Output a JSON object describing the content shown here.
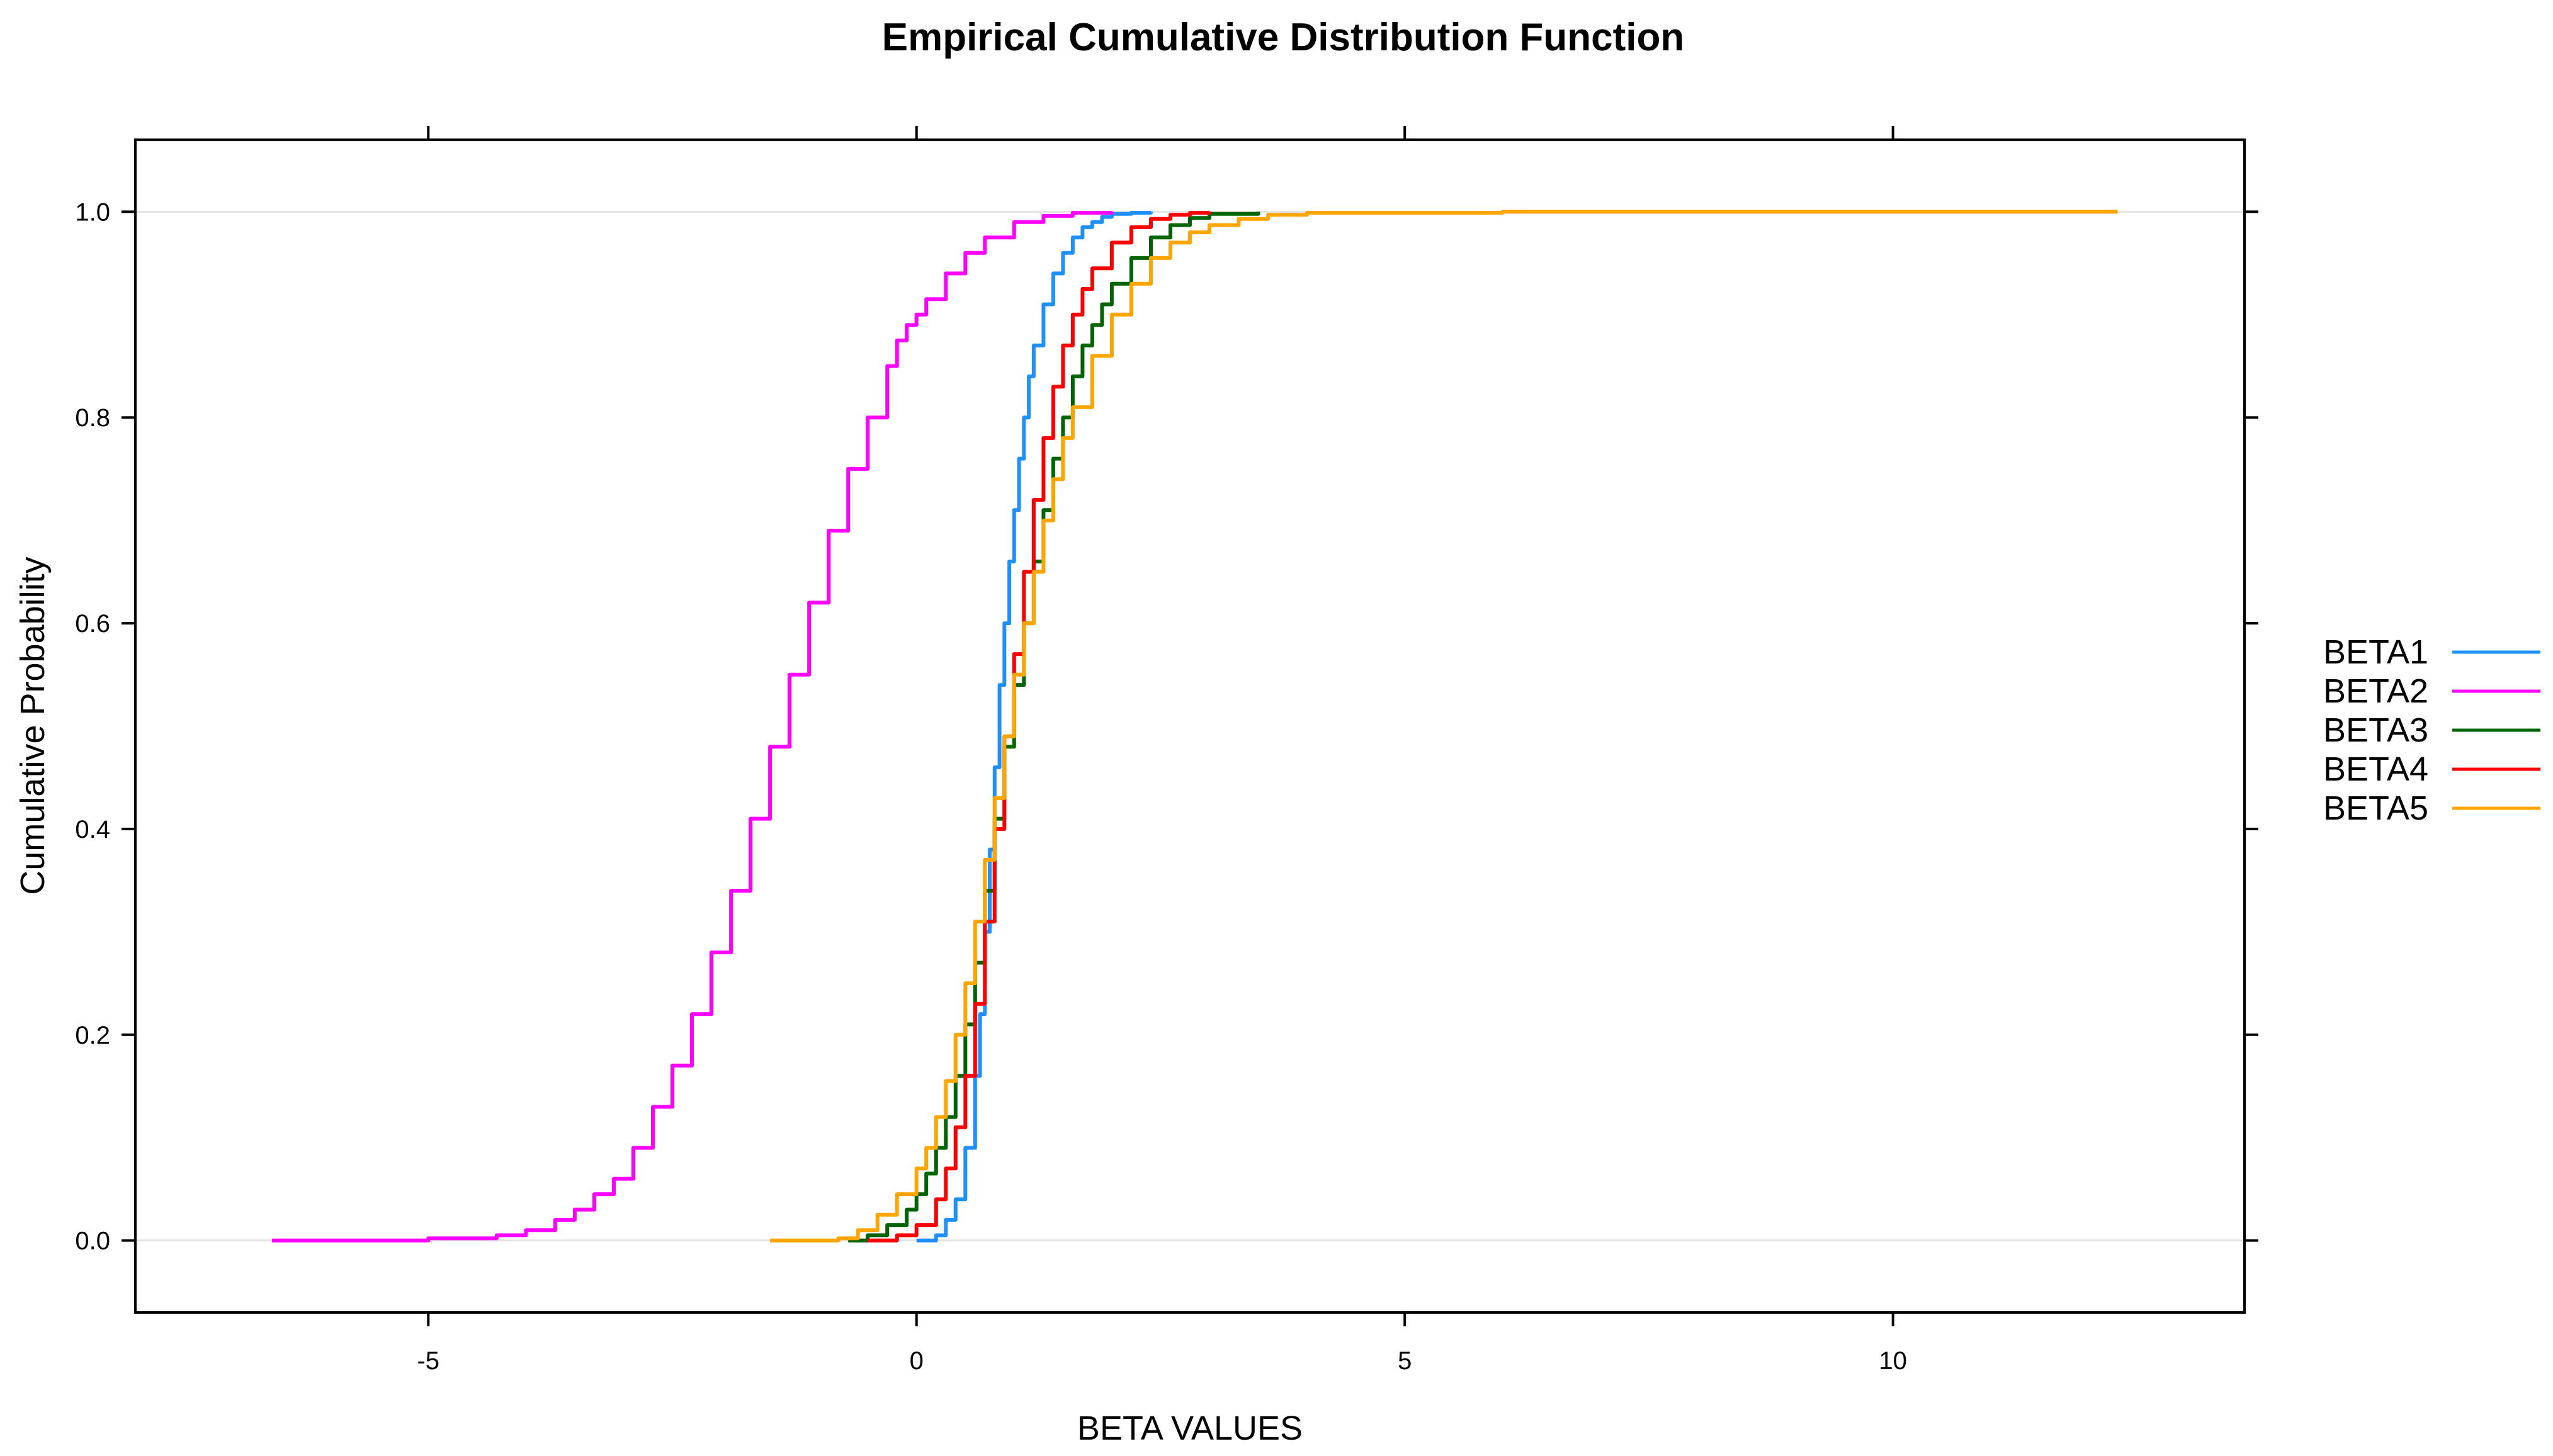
{
  "chart_data": {
    "type": "line",
    "title": "Empirical Cumulative Distribution Function",
    "xlabel": "BETA VALUES",
    "ylabel": "Cumulative Probability",
    "xlim": [
      -8,
      13.6
    ],
    "ylim": [
      -0.07,
      1.07
    ],
    "xticks": [
      -5,
      0,
      5,
      10
    ],
    "xtick_labels": [
      "-5",
      "0",
      "5",
      "10"
    ],
    "yticks": [
      0.0,
      0.2,
      0.4,
      0.6,
      0.8,
      1.0
    ],
    "ytick_labels": [
      "0.0",
      "0.2",
      "0.4",
      "0.6",
      "0.8",
      "1.0"
    ],
    "grid": "horizontal at 0 and 1",
    "legend_position": "right",
    "series": [
      {
        "name": "BETA1",
        "color": "#1e90ff",
        "x": [
          0.0,
          0.2,
          0.3,
          0.4,
          0.5,
          0.6,
          0.65,
          0.7,
          0.75,
          0.8,
          0.85,
          0.9,
          0.95,
          1.0,
          1.05,
          1.1,
          1.15,
          1.2,
          1.3,
          1.4,
          1.5,
          1.6,
          1.7,
          1.8,
          1.9,
          2.0,
          2.2,
          2.4
        ],
        "y": [
          0.0,
          0.005,
          0.02,
          0.04,
          0.09,
          0.16,
          0.22,
          0.3,
          0.38,
          0.46,
          0.54,
          0.6,
          0.66,
          0.71,
          0.76,
          0.8,
          0.84,
          0.87,
          0.91,
          0.94,
          0.96,
          0.975,
          0.985,
          0.99,
          0.995,
          0.998,
          0.999,
          1.0
        ]
      },
      {
        "name": "BETA2",
        "color": "#ff00ff",
        "x": [
          -6.6,
          -5.0,
          -4.3,
          -4.0,
          -3.7,
          -3.5,
          -3.3,
          -3.1,
          -2.9,
          -2.7,
          -2.5,
          -2.3,
          -2.1,
          -1.9,
          -1.7,
          -1.5,
          -1.3,
          -1.1,
          -0.9,
          -0.7,
          -0.5,
          -0.3,
          -0.2,
          -0.1,
          0.0,
          0.1,
          0.3,
          0.5,
          0.7,
          1.0,
          1.3,
          1.6,
          2.0
        ],
        "y": [
          0.0,
          0.002,
          0.005,
          0.01,
          0.02,
          0.03,
          0.045,
          0.06,
          0.09,
          0.13,
          0.17,
          0.22,
          0.28,
          0.34,
          0.41,
          0.48,
          0.55,
          0.62,
          0.69,
          0.75,
          0.8,
          0.85,
          0.875,
          0.89,
          0.9,
          0.915,
          0.94,
          0.96,
          0.975,
          0.99,
          0.996,
          0.999,
          1.0
        ]
      },
      {
        "name": "BETA3",
        "color": "#006400",
        "x": [
          -0.7,
          -0.5,
          -0.3,
          -0.1,
          0.0,
          0.1,
          0.2,
          0.3,
          0.4,
          0.5,
          0.6,
          0.7,
          0.8,
          0.9,
          1.0,
          1.1,
          1.2,
          1.3,
          1.4,
          1.5,
          1.6,
          1.7,
          1.8,
          1.9,
          2.0,
          2.2,
          2.4,
          2.6,
          2.8,
          3.0,
          3.5
        ],
        "y": [
          0.0,
          0.005,
          0.015,
          0.03,
          0.045,
          0.065,
          0.09,
          0.12,
          0.16,
          0.21,
          0.27,
          0.34,
          0.41,
          0.48,
          0.54,
          0.6,
          0.66,
          0.71,
          0.76,
          0.8,
          0.84,
          0.87,
          0.89,
          0.91,
          0.93,
          0.955,
          0.975,
          0.987,
          0.994,
          0.998,
          1.0
        ]
      },
      {
        "name": "BETA4",
        "color": "#ff0000",
        "x": [
          -0.5,
          -0.2,
          0.0,
          0.2,
          0.3,
          0.4,
          0.5,
          0.6,
          0.7,
          0.8,
          0.9,
          1.0,
          1.1,
          1.2,
          1.3,
          1.4,
          1.5,
          1.6,
          1.7,
          1.8,
          2.0,
          2.2,
          2.4,
          2.6,
          2.8,
          3.0
        ],
        "y": [
          0.0,
          0.005,
          0.015,
          0.04,
          0.07,
          0.11,
          0.16,
          0.23,
          0.31,
          0.4,
          0.49,
          0.57,
          0.65,
          0.72,
          0.78,
          0.83,
          0.87,
          0.9,
          0.925,
          0.945,
          0.97,
          0.985,
          0.993,
          0.997,
          0.999,
          1.0
        ]
      },
      {
        "name": "BETA5",
        "color": "#ffa500",
        "x": [
          -1.5,
          -0.8,
          -0.6,
          -0.4,
          -0.2,
          0.0,
          0.1,
          0.2,
          0.3,
          0.4,
          0.5,
          0.6,
          0.7,
          0.8,
          0.9,
          1.0,
          1.1,
          1.2,
          1.3,
          1.4,
          1.5,
          1.6,
          1.8,
          2.0,
          2.2,
          2.4,
          2.6,
          2.8,
          3.0,
          3.3,
          3.6,
          4.0,
          6.0,
          12.3
        ],
        "y": [
          0.0,
          0.002,
          0.01,
          0.025,
          0.045,
          0.07,
          0.09,
          0.12,
          0.155,
          0.2,
          0.25,
          0.31,
          0.37,
          0.43,
          0.49,
          0.55,
          0.6,
          0.65,
          0.7,
          0.74,
          0.78,
          0.81,
          0.86,
          0.9,
          0.93,
          0.955,
          0.97,
          0.98,
          0.987,
          0.993,
          0.997,
          0.999,
          1.0,
          1.0
        ]
      }
    ]
  }
}
